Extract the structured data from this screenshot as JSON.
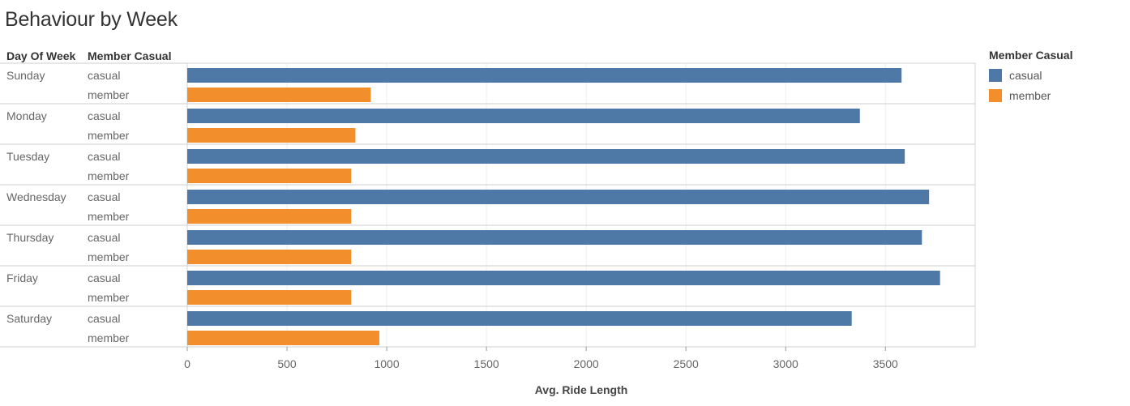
{
  "chart_data": {
    "type": "bar",
    "orientation": "horizontal",
    "title": "Behaviour by Week",
    "row_headers": [
      "Day Of Week",
      "Member Casual"
    ],
    "xlabel": "Avg. Ride Length",
    "xlim": [
      0,
      3950
    ],
    "x_ticks": [
      0,
      500,
      1000,
      1500,
      2000,
      2500,
      3000,
      3500
    ],
    "legend": {
      "title": "Member Casual",
      "position": "right",
      "entries": [
        {
          "name": "casual",
          "color": "#4e79a7"
        },
        {
          "name": "member",
          "color": "#f28e2b"
        }
      ]
    },
    "categories": [
      {
        "day": "Sunday",
        "values": [
          {
            "group": "casual",
            "value": 3581
          },
          {
            "group": "member",
            "value": 920
          }
        ]
      },
      {
        "day": "Monday",
        "values": [
          {
            "group": "casual",
            "value": 3372
          },
          {
            "group": "member",
            "value": 843
          }
        ]
      },
      {
        "day": "Tuesday",
        "values": [
          {
            "group": "casual",
            "value": 3597
          },
          {
            "group": "member",
            "value": 822
          }
        ]
      },
      {
        "day": "Wednesday",
        "values": [
          {
            "group": "casual",
            "value": 3719
          },
          {
            "group": "member",
            "value": 822
          }
        ]
      },
      {
        "day": "Thursday",
        "values": [
          {
            "group": "casual",
            "value": 3683
          },
          {
            "group": "member",
            "value": 822
          }
        ]
      },
      {
        "day": "Friday",
        "values": [
          {
            "group": "casual",
            "value": 3774
          },
          {
            "group": "member",
            "value": 822
          }
        ]
      },
      {
        "day": "Saturday",
        "values": [
          {
            "group": "casual",
            "value": 3331
          },
          {
            "group": "member",
            "value": 963
          }
        ]
      }
    ],
    "grid": true
  }
}
